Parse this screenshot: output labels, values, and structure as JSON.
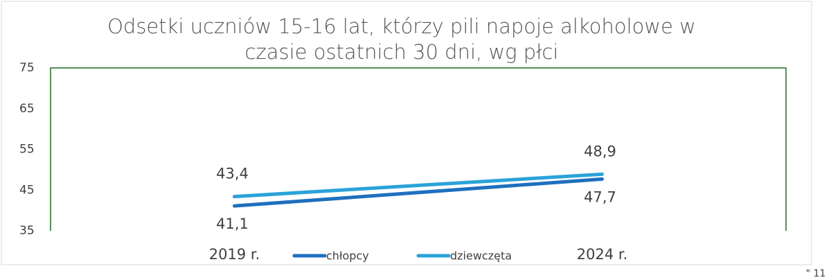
{
  "chart_data": {
    "type": "line",
    "title": [
      "Odsetki uczniów 15-16 lat, którzy pili napoje alkoholowe w",
      "czasie ostatnich 30 dni, wg płci"
    ],
    "categories": [
      "2019 r.",
      "2024 r."
    ],
    "series": [
      {
        "name": "chłopcy",
        "color": "#1f6fbf",
        "values": [
          41.1,
          47.7
        ],
        "value_labels": [
          "41,1",
          "47,7"
        ]
      },
      {
        "name": "dziewczęta",
        "color": "#2aa3d9",
        "values": [
          43.4,
          48.9
        ],
        "value_labels": [
          "43,4",
          "48,9"
        ]
      }
    ],
    "ylim": [
      35,
      75
    ],
    "yticks": [
      35,
      45,
      55,
      65,
      75
    ],
    "grid": false,
    "legend": "bottom",
    "corner_text": "\" 11"
  }
}
